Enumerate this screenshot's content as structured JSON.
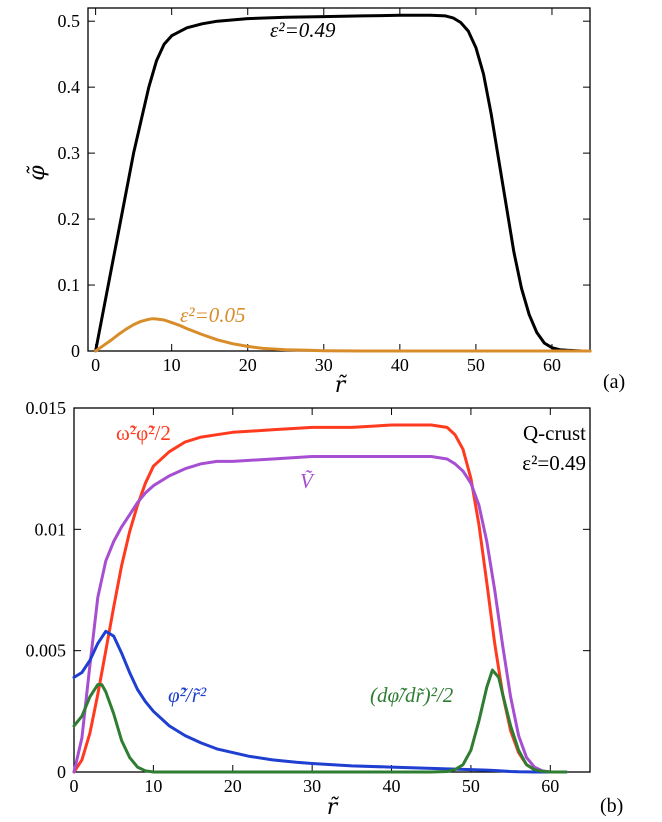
{
  "chart_data": [
    {
      "type": "line",
      "panel_label": "(a)",
      "xlabel": "r̃",
      "ylabel": "φ̃",
      "xlim": [
        -1,
        65
      ],
      "ylim": [
        0,
        0.52
      ],
      "xticks": [
        0,
        10,
        20,
        30,
        40,
        50,
        60
      ],
      "yticks": [
        0,
        0.1,
        0.2,
        0.3,
        0.4,
        0.5
      ],
      "ytick_labels": [
        "0",
        "0.1",
        "0.2",
        "0.3",
        "0.4",
        "0.5"
      ],
      "grid": false,
      "series": [
        {
          "name": "ε²=0.49",
          "color": "#000000",
          "x": [
            0,
            1,
            2,
            3,
            4,
            5,
            6,
            7,
            8,
            9,
            10,
            12,
            14,
            16,
            20,
            25,
            30,
            35,
            40,
            44,
            46,
            47,
            48,
            49,
            50,
            51,
            52,
            53,
            54,
            55,
            56,
            57,
            58,
            59,
            60,
            61,
            62,
            64,
            65
          ],
          "y": [
            0,
            0.06,
            0.12,
            0.18,
            0.24,
            0.3,
            0.35,
            0.4,
            0.44,
            0.465,
            0.478,
            0.49,
            0.496,
            0.5,
            0.504,
            0.506,
            0.507,
            0.508,
            0.509,
            0.509,
            0.508,
            0.505,
            0.498,
            0.485,
            0.46,
            0.42,
            0.36,
            0.29,
            0.22,
            0.15,
            0.095,
            0.055,
            0.028,
            0.012,
            0.005,
            0.002,
            0.001,
            0,
            0
          ],
          "label_text": "ε²=0.49"
        },
        {
          "name": "ε²=0.05",
          "color": "#d98c2a",
          "x": [
            0,
            1,
            2,
            3,
            4,
            5,
            6,
            7,
            7.5,
            8,
            9,
            10,
            11,
            12,
            14,
            16,
            18,
            20,
            22,
            25,
            28,
            30,
            35,
            40,
            50,
            60,
            65
          ],
          "y": [
            0,
            0.008,
            0.016,
            0.025,
            0.033,
            0.04,
            0.045,
            0.048,
            0.049,
            0.0485,
            0.047,
            0.043,
            0.039,
            0.034,
            0.025,
            0.017,
            0.011,
            0.007,
            0.004,
            0.002,
            0.001,
            0.0005,
            0,
            0,
            0,
            0,
            0
          ],
          "label_text": "ε²=0.05"
        }
      ]
    },
    {
      "type": "line",
      "panel_label": "(b)",
      "xlabel": "r̃",
      "xlim": [
        0,
        65
      ],
      "ylim": [
        0,
        0.015
      ],
      "xticks": [
        0,
        10,
        20,
        30,
        40,
        50,
        60
      ],
      "yticks": [
        0,
        0.005,
        0.01,
        0.015
      ],
      "ytick_labels": [
        "0",
        "0.005",
        "0.01",
        "0.015"
      ],
      "grid": false,
      "corner_text": [
        "Q-crust",
        "ε²=0.49"
      ],
      "series": [
        {
          "name": "ω̃²φ̃²/2",
          "color": "#ff3a1f",
          "x": [
            0,
            1,
            2,
            3,
            4,
            5,
            6,
            7,
            8,
            9,
            10,
            12,
            14,
            16,
            18,
            20,
            25,
            30,
            35,
            40,
            45,
            47,
            48,
            49,
            50,
            51,
            52,
            53,
            54,
            55,
            56,
            57,
            58,
            59,
            60,
            61,
            62
          ],
          "y": [
            0,
            0.0005,
            0.0016,
            0.0032,
            0.005,
            0.0068,
            0.0085,
            0.0099,
            0.011,
            0.0119,
            0.0126,
            0.0132,
            0.0136,
            0.0138,
            0.0139,
            0.014,
            0.0141,
            0.0142,
            0.0142,
            0.0143,
            0.0143,
            0.0142,
            0.0139,
            0.0133,
            0.0121,
            0.0102,
            0.0078,
            0.0053,
            0.0032,
            0.0017,
            0.0008,
            0.0003,
            0.0001,
            3e-05,
            0,
            0,
            0
          ]
        },
        {
          "name": "Ṽ",
          "color": "#a64fd1",
          "x": [
            0,
            1,
            2,
            3,
            4,
            5,
            6,
            7,
            8,
            9,
            10,
            12,
            14,
            16,
            18,
            20,
            25,
            30,
            35,
            40,
            45,
            47,
            48,
            49,
            50,
            51,
            52,
            53,
            54,
            55,
            56,
            57,
            58,
            59,
            60,
            61,
            62
          ],
          "y": [
            0,
            0.0014,
            0.0044,
            0.0072,
            0.0087,
            0.0095,
            0.0101,
            0.0106,
            0.0111,
            0.0115,
            0.0118,
            0.0122,
            0.0125,
            0.0127,
            0.0128,
            0.0128,
            0.0129,
            0.013,
            0.013,
            0.013,
            0.013,
            0.0129,
            0.0127,
            0.0124,
            0.0119,
            0.011,
            0.0095,
            0.0075,
            0.0052,
            0.0031,
            0.0015,
            0.0006,
            0.0002,
            5e-05,
            0,
            0,
            0
          ]
        },
        {
          "name": "φ̃²/r̃²",
          "color": "#1e3fd0",
          "x": [
            0,
            1,
            2,
            3,
            4,
            5,
            6,
            7,
            8,
            9,
            10,
            12,
            14,
            16,
            18,
            20,
            22,
            25,
            28,
            30,
            35,
            40,
            45,
            48,
            50,
            52,
            53,
            54,
            55,
            56,
            58,
            60,
            62
          ],
          "y": [
            0.0039,
            0.0041,
            0.0046,
            0.0053,
            0.0058,
            0.0056,
            0.0049,
            0.0041,
            0.0034,
            0.0029,
            0.0025,
            0.0019,
            0.0015,
            0.0012,
            0.00095,
            0.0008,
            0.00065,
            0.0005,
            0.0004,
            0.00035,
            0.00025,
            0.0002,
            0.00015,
            0.00012,
            0.0001,
            8e-05,
            6e-05,
            4e-05,
            2e-05,
            1e-05,
            0,
            0,
            0
          ]
        },
        {
          "name": "(dφ̃/dr̃)²/2",
          "color": "#2e7d32",
          "x": [
            0,
            1,
            2,
            3,
            3.5,
            4,
            5,
            6,
            7,
            8,
            9,
            10,
            15,
            20,
            30,
            40,
            45,
            47,
            48,
            49,
            50,
            51,
            52,
            52.7,
            53.5,
            54,
            55,
            56,
            57,
            58,
            59,
            60,
            62
          ],
          "y": [
            0.0019,
            0.0023,
            0.0031,
            0.0036,
            0.0036,
            0.0033,
            0.0024,
            0.0013,
            0.0006,
            0.0002,
            5e-05,
            0,
            0,
            0,
            0,
            0,
            0,
            2e-05,
            0.0001,
            0.0003,
            0.0009,
            0.0021,
            0.0035,
            0.0042,
            0.0039,
            0.0032,
            0.0019,
            0.0009,
            0.0003,
            0.0001,
            3e-05,
            0,
            0
          ]
        }
      ]
    }
  ]
}
